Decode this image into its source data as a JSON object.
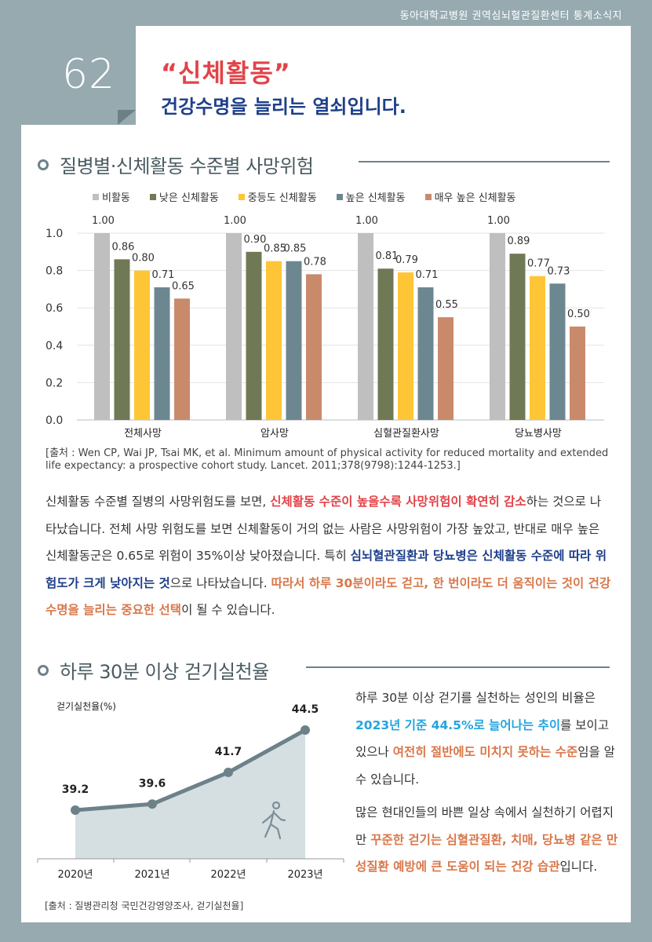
{
  "header": {
    "publisher": "동아대학교병원 권역심뇌혈관질환센터 통계소식지"
  },
  "issue": {
    "number": "62"
  },
  "title": {
    "line1": "“신체활동”",
    "line2": "건강수명을 늘리는 열쇠입니다."
  },
  "section1": {
    "title": "질병별·신체활동 수준별 사망위험"
  },
  "section2": {
    "title": "하루 30분 이상 걷기실천율"
  },
  "colors": {
    "accent_red": "#e14348",
    "navy": "#1e3f8a",
    "orange": "#d9774a",
    "cyan": "#23a4e0",
    "frame": "#96aab0"
  },
  "chart_data": [
    {
      "type": "bar",
      "categories": [
        "전체사망",
        "암사망",
        "심혈관질환사망",
        "당뇨병사망"
      ],
      "series": [
        {
          "name": "비활동",
          "color": "#bfbfbf",
          "values": [
            1.0,
            1.0,
            1.0,
            1.0
          ]
        },
        {
          "name": "낮은 신체활동",
          "color": "#6f7955",
          "values": [
            0.86,
            0.9,
            0.81,
            0.89
          ]
        },
        {
          "name": "중등도 신체활동",
          "color": "#fec536",
          "values": [
            0.8,
            0.85,
            0.79,
            0.77
          ]
        },
        {
          "name": "높은 신체활동",
          "color": "#6d8791",
          "values": [
            0.71,
            0.85,
            0.71,
            0.73
          ]
        },
        {
          "name": "매우 높은 신체활동",
          "color": "#c98a6b",
          "values": [
            0.65,
            0.78,
            0.55,
            0.5
          ]
        }
      ],
      "value_labels": [
        [
          "1.00",
          "1.00",
          "1.00",
          "1.00"
        ],
        [
          "0.86",
          "0.90",
          "0.81",
          "0.89"
        ],
        [
          "0.80",
          "0.85",
          "0.79",
          "0.77"
        ],
        [
          "0.71",
          "0.85",
          "0.71",
          "0.73"
        ],
        [
          "0.65",
          "0.78",
          "0.55",
          "0.50"
        ]
      ],
      "yticks": [
        "0.0",
        "0.2",
        "0.4",
        "0.6",
        "0.8",
        "1.0"
      ],
      "ylim": [
        0,
        1.0
      ],
      "grid": true,
      "legend": "top"
    },
    {
      "type": "area",
      "x": [
        "2020년",
        "2021년",
        "2022년",
        "2023년"
      ],
      "values": [
        39.2,
        39.6,
        41.7,
        44.5
      ],
      "value_labels": [
        "39.2",
        "39.6",
        "41.7",
        "44.5"
      ],
      "ylabel": "걷기실천율(%)",
      "line_color": "#6d8189",
      "fill_color": "#d5dfe2",
      "icon": "walking-person-icon"
    }
  ],
  "source1": {
    "text": "[출처 : Wen CP, Wai JP, Tsai MK, et al. Minimum amount of physical activity for reduced mortality and extended life expectancy: a prospective cohort study. Lancet. 2011;378(9798):1244-1253.]"
  },
  "paragraph1": [
    {
      "t": "신체활동 수준별 질병의 사망위험도를 보면, ",
      "s": ""
    },
    {
      "t": "신체활동 수준이 높을수록 사망위험이 확연히 감소",
      "s": "red"
    },
    {
      "t": "하는 것으로 나타났습니다. 전체 사망 위험도를 보면 신체활동이 거의 없는 사람은 사망위험이 가장 높았고, 반대로 매우 높은 신체활동군은 0.65로 위험이 35%이상 낮아졌습니다. 특히 ",
      "s": ""
    },
    {
      "t": "심뇌혈관질환과 당뇨병은 신체활동 수준에 따라 위험도가 크게 낮아지는 것",
      "s": "navy"
    },
    {
      "t": "으로 나타났습니다. ",
      "s": ""
    },
    {
      "t": "따라서 하루 30분이라도 걷고, 한 번이라도 더 움직이는 것이 건강수명을 늘리는 중요한 선택",
      "s": "orange"
    },
    {
      "t": "이 될 수 있습니다.",
      "s": ""
    }
  ],
  "paragraph2": [
    {
      "t": "하루 30분 이상 걷기를 실천하는 성인의 비율은 ",
      "s": ""
    },
    {
      "t": "2023년 기준 44.5%로 늘어나는 추이",
      "s": "cyan"
    },
    {
      "t": "를 보이고 있으나 ",
      "s": ""
    },
    {
      "t": "여전히 절반에도 미치지 못하는 수준",
      "s": "orange"
    },
    {
      "t": "임을 알 수 있습니다.",
      "s": ""
    }
  ],
  "paragraph3": [
    {
      "t": "많은 현대인들의 바쁜 일상 속에서 실천하기 어렵지만 ",
      "s": ""
    },
    {
      "t": "꾸준한 걷기는 심혈관질환, 치매, 당뇨병 같은 만성질환 예방에 큰 도움이 되는 건강 습관",
      "s": "orange"
    },
    {
      "t": "입니다.",
      "s": ""
    }
  ],
  "source2": {
    "text": "[출처 : 질병관리청 국민건강영양조사, 걷기실천율]"
  }
}
